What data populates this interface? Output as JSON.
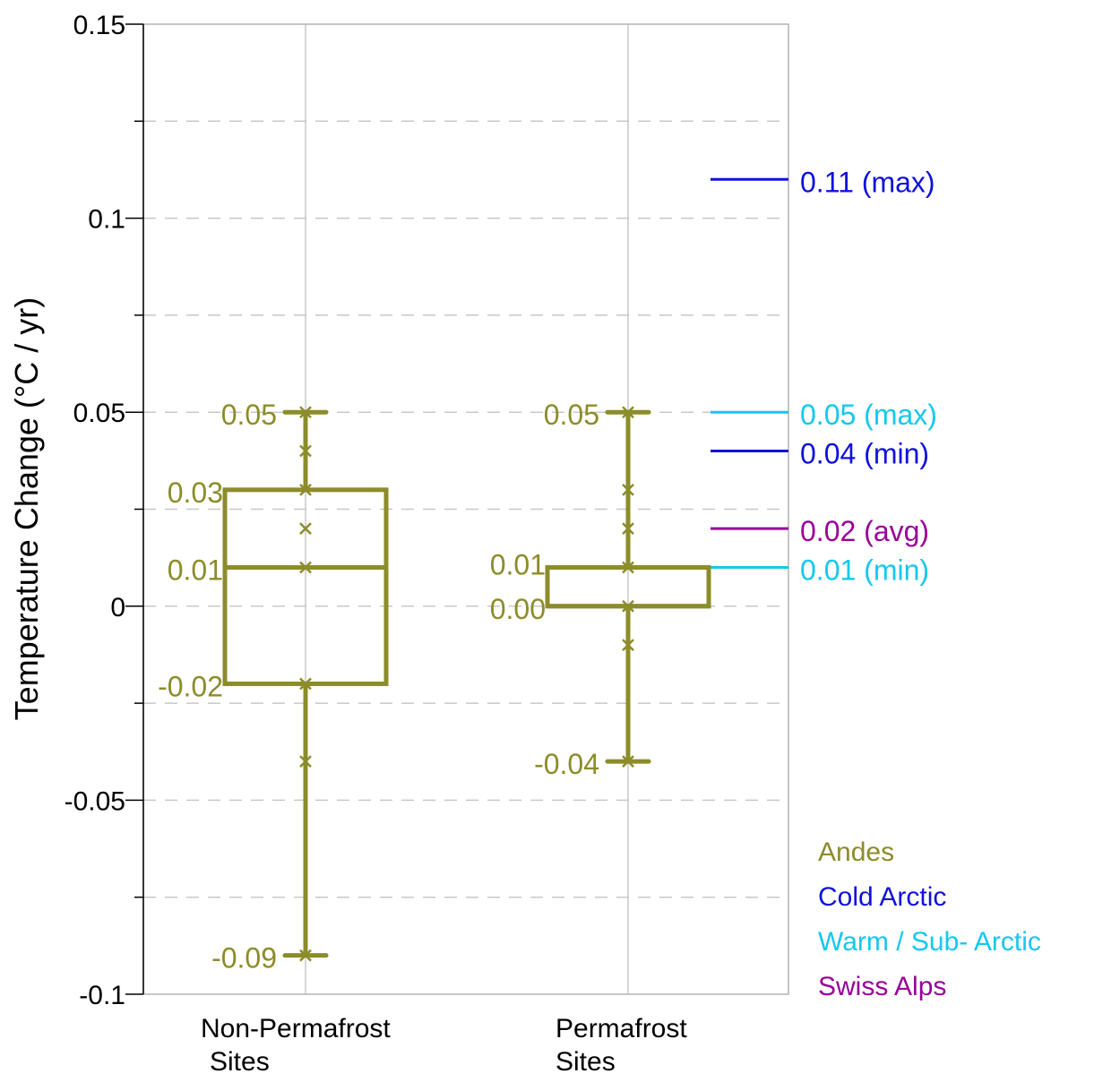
{
  "chart_data": {
    "type": "box",
    "ylabel": "Temperature Change (°C / yr)",
    "ylim": [
      -0.1,
      0.15
    ],
    "yticks": [
      {
        "value": 0.15,
        "label": "0.15"
      },
      {
        "value": 0.1,
        "label": "0.1"
      },
      {
        "value": 0.05,
        "label": "0.05"
      },
      {
        "value": 0,
        "label": "0"
      },
      {
        "value": -0.05,
        "label": "-0.05"
      },
      {
        "value": -0.1,
        "label": "-0.1"
      }
    ],
    "grid": true,
    "categories": [
      {
        "line1": "Non-Permafrost",
        "line2": "Sites"
      },
      {
        "line1": "Permafrost",
        "line2": "Sites"
      }
    ],
    "boxes": [
      {
        "category_index": 0,
        "min": -0.09,
        "q1": -0.02,
        "median": 0.01,
        "q3": 0.03,
        "max": 0.05,
        "points": [
          0.05,
          0.04,
          0.03,
          0.02,
          0.01,
          -0.02,
          -0.04,
          -0.09
        ],
        "labels": [
          {
            "value": 0.05,
            "text": "0.05"
          },
          {
            "value": 0.03,
            "text": "0.03"
          },
          {
            "value": 0.01,
            "text": "0.01"
          },
          {
            "value": -0.02,
            "text": "-0.02"
          },
          {
            "value": -0.09,
            "text": "-0.09"
          }
        ]
      },
      {
        "category_index": 1,
        "min": -0.04,
        "q1": 0.0,
        "median": 0.0,
        "q3": 0.01,
        "max": 0.05,
        "points": [
          0.05,
          0.03,
          0.02,
          0.01,
          0.0,
          -0.01,
          -0.04
        ],
        "labels": [
          {
            "value": 0.05,
            "text": "0.05"
          },
          {
            "value": 0.01,
            "text": "0.01"
          },
          {
            "value": 0.0,
            "text": "0.00"
          },
          {
            "value": -0.04,
            "text": "-0.04"
          }
        ]
      }
    ],
    "reference_lines": [
      {
        "value": 0.11,
        "text": "0.11 (max)",
        "series": "Cold Arctic"
      },
      {
        "value": 0.05,
        "text": "0.05 (max)",
        "series": "Warm / Sub- Arctic"
      },
      {
        "value": 0.04,
        "text": "0.04 (min)",
        "series": "Cold Arctic"
      },
      {
        "value": 0.02,
        "text": "0.02 (avg)",
        "series": "Swiss Alps"
      },
      {
        "value": 0.01,
        "text": "0.01 (min)",
        "series": "Warm / Sub- Arctic"
      }
    ],
    "legend": {
      "placement": "bottom-right",
      "entries": [
        {
          "name": "Andes",
          "color": "#8c8c2a"
        },
        {
          "name": "Cold Arctic",
          "color": "#1010dd"
        },
        {
          "name": "Warm / Sub- Arctic",
          "color": "#14c8ee"
        },
        {
          "name": "Swiss Alps",
          "color": "#990099"
        }
      ]
    }
  }
}
